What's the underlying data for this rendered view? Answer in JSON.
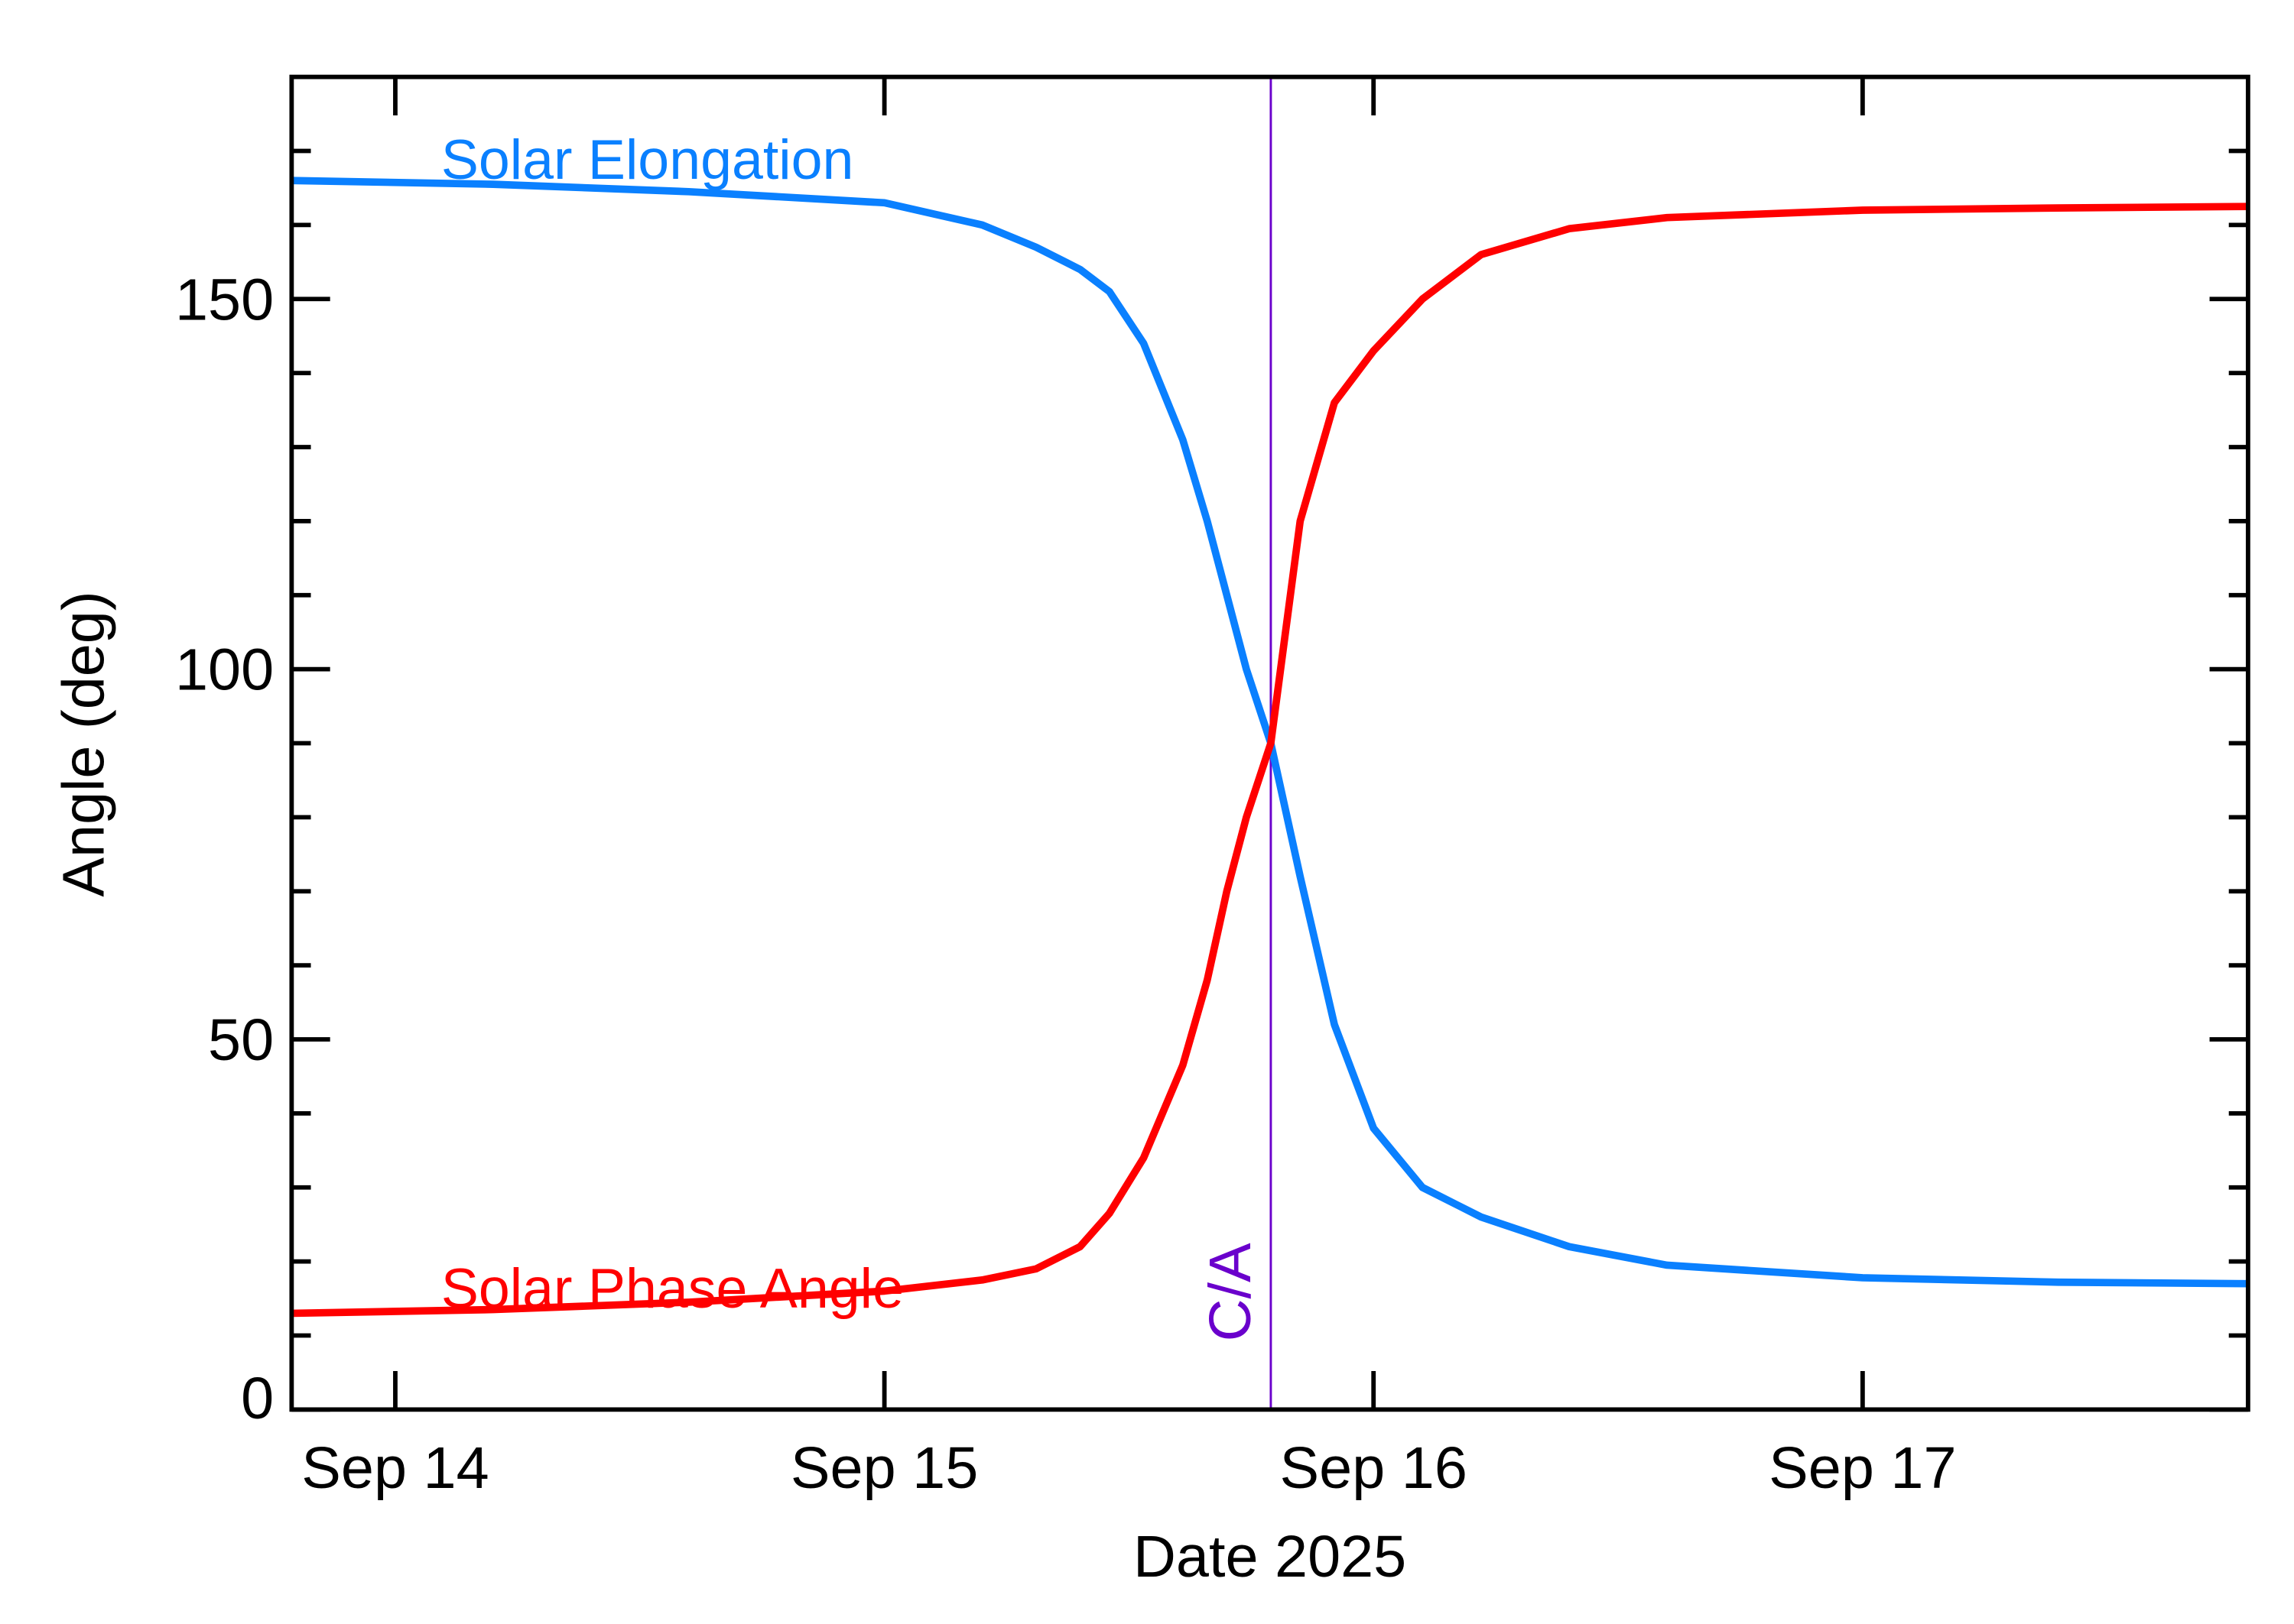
{
  "chart_data": {
    "type": "line",
    "xlabel": "Date 2025",
    "ylabel": "Angle (deg)",
    "x": [
      13.79,
      14.2,
      14.6,
      15.0,
      15.2,
      15.31,
      15.4,
      15.46,
      15.53,
      15.61,
      15.66,
      15.7,
      15.74,
      15.79,
      15.85,
      15.92,
      16.0,
      16.1,
      16.22,
      16.4,
      16.6,
      17.0,
      17.4,
      17.79
    ],
    "series": [
      {
        "name": "Solar Elongation",
        "color": "#0a80ff",
        "values": [
          166,
          165.5,
          164.5,
          163,
          160,
          157,
          154,
          151,
          144,
          131,
          120,
          110,
          100,
          90,
          72,
          52,
          38,
          30,
          26,
          22,
          19.5,
          17.8,
          17.2,
          17
        ]
      },
      {
        "name": "Solar Phase Angle",
        "color": "#ff0000",
        "values": [
          13,
          13.5,
          14.5,
          16,
          17.5,
          19,
          22,
          26.5,
          34,
          46.5,
          58,
          70,
          80,
          90,
          120,
          136,
          143,
          150,
          156,
          159.5,
          161,
          162,
          162.3,
          162.5
        ]
      }
    ],
    "xlim": [
      13.788,
      17.788
    ],
    "xticks": [
      {
        "value": 14,
        "label": "Sep 14"
      },
      {
        "value": 15,
        "label": "Sep 15"
      },
      {
        "value": 16,
        "label": "Sep 16"
      },
      {
        "value": 17,
        "label": "Sep 17"
      }
    ],
    "ylim": [
      0,
      180
    ],
    "yticks": [
      0,
      50,
      100,
      150
    ],
    "y_minor_ticks": [
      10,
      20,
      30,
      40,
      60,
      70,
      80,
      90,
      110,
      120,
      130,
      140,
      160,
      170
    ],
    "closest_approach": {
      "x": 15.79,
      "label": "C/A",
      "color": "#6a00cc"
    }
  }
}
